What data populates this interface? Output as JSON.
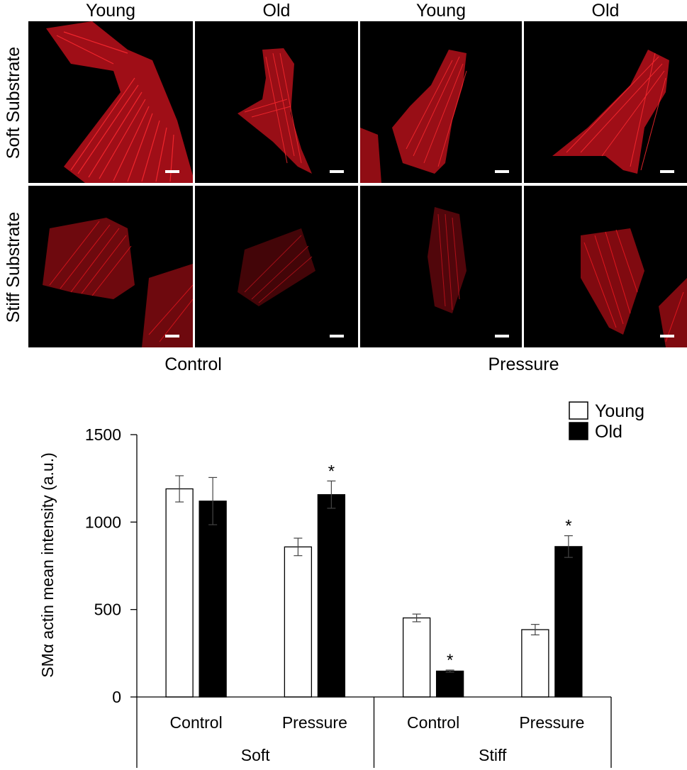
{
  "micrographs": {
    "column_labels": [
      "Young",
      "Old",
      "Young",
      "Old"
    ],
    "row_labels": [
      "Soft Substrate",
      "Stiff Substrate"
    ],
    "group_labels": [
      "Control",
      "Pressure"
    ],
    "stain_color": "#e0141e"
  },
  "chart_data": {
    "type": "bar",
    "ylabel": "SMα actin mean intensity (a.u.)",
    "xlabel": "",
    "ylim": [
      0,
      1500
    ],
    "yticks": [
      0,
      500,
      1000,
      1500
    ],
    "grid": false,
    "legend_placement": "top-right",
    "categories": [
      "Control",
      "Pressure",
      "Control",
      "Pressure"
    ],
    "category_groups": [
      {
        "label": "Soft",
        "categories": [
          0,
          1
        ]
      },
      {
        "label": "Stiff",
        "categories": [
          2,
          3
        ]
      }
    ],
    "series": [
      {
        "name": "Young",
        "color": "#ffffff",
        "values": [
          1190,
          858,
          452,
          385
        ],
        "errors": [
          75,
          50,
          22,
          30
        ],
        "significance": [
          "",
          "",
          "",
          ""
        ]
      },
      {
        "name": "Old",
        "color": "#000000",
        "values": [
          1120,
          1157,
          148,
          860
        ],
        "errors": [
          135,
          78,
          6,
          62
        ],
        "significance": [
          "",
          "*",
          "*",
          "*"
        ]
      }
    ]
  }
}
